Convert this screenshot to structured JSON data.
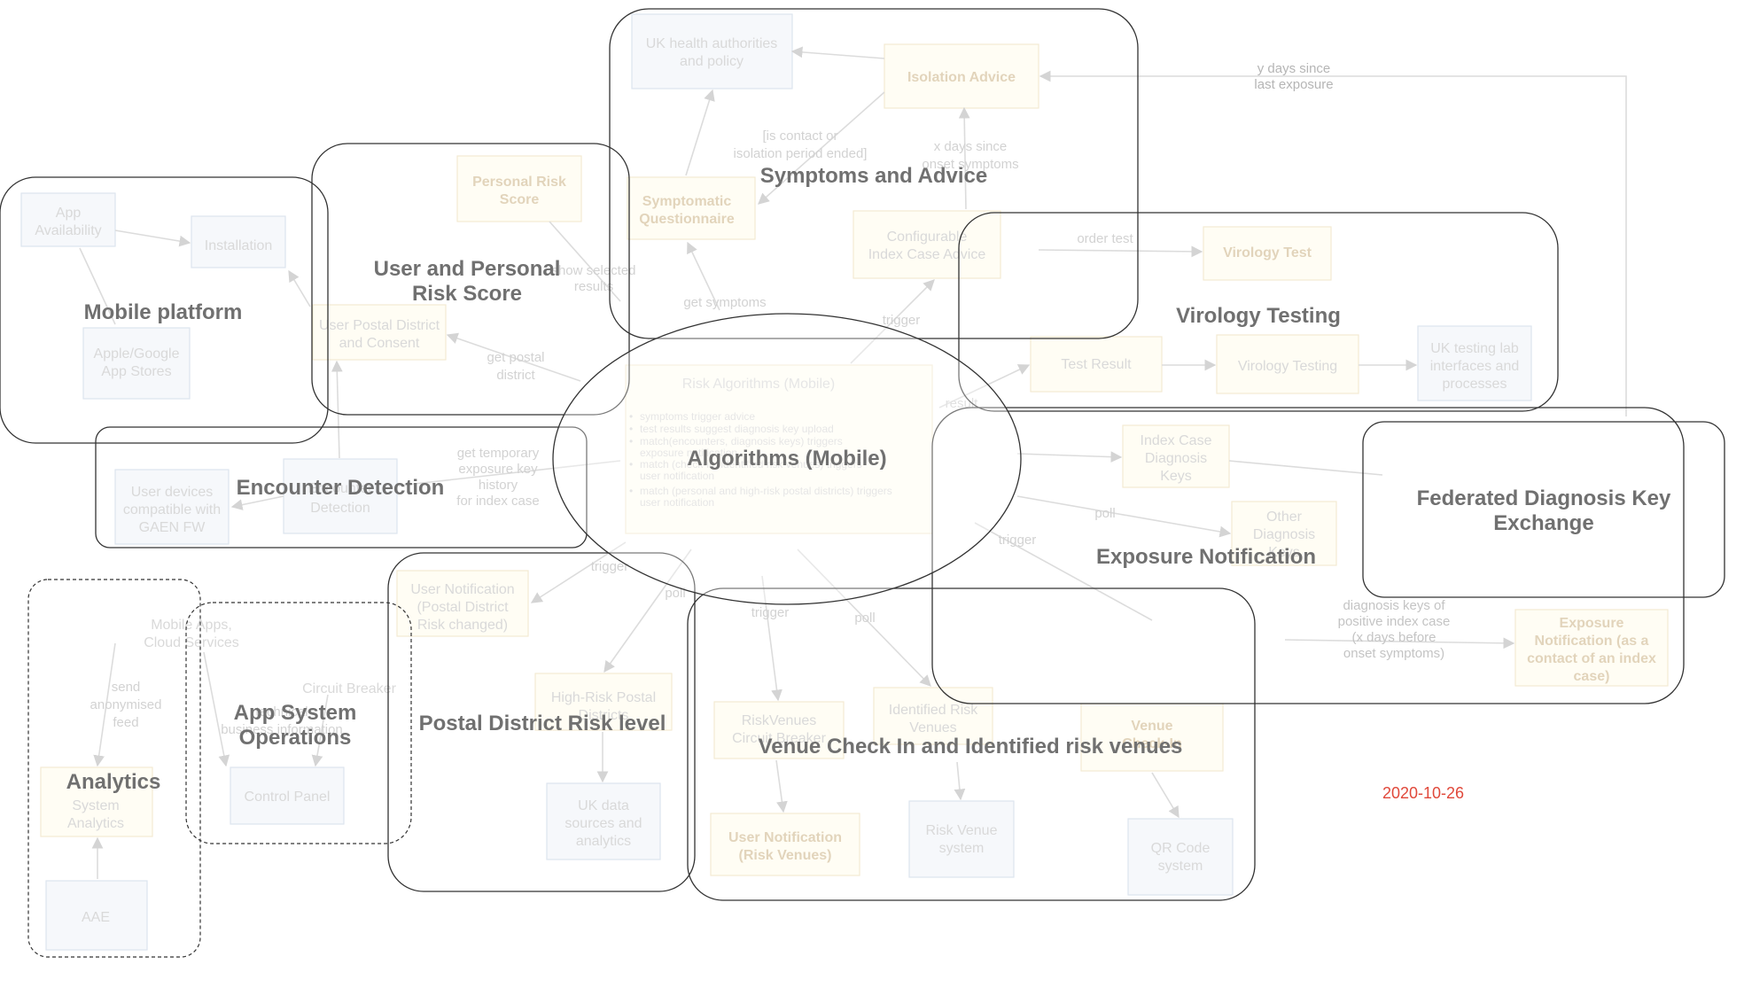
{
  "nodes": {
    "uk_health": "UK health authorities and policy",
    "isolation_advice": "Isolation Advice",
    "symptomatic_questionnaire": "Symptomatic Questionnaire",
    "configurable_index": "Configurable Index Case Advice",
    "personal_risk_score": "Personal Risk Score",
    "user_postal_district": "User Postal District and Consent",
    "app_availability": "App Availability",
    "installation": "Installation",
    "app_stores": "Apple/Google App Stores",
    "user_devices": "User devices compatible with GAEN FW",
    "encounter_detection_node": "Encounter Detection",
    "risk_algorithms": "Risk Algorithms (Mobile)",
    "risk_bullets": [
      "symptoms trigger advice",
      "test results suggest diagnosis key upload",
      "match(encounters, diagnosis keys) triggers exposure notification",
      "match (check-in, identified risk venues) triggers user notification",
      "match (personal and high-risk postal districts) triggers user notification"
    ],
    "virology_test": "Virology Test",
    "test_result": "Test Result",
    "virology_testing_node": "Virology Testing",
    "uk_testing_lab": "UK testing lab interfaces and processes",
    "index_case_keys": "Index Case Diagnosis Keys",
    "other_diagnosis_keys": "Other Diagnosis Keys",
    "exposure_notification_node": "Exposure Notification (as a contact of an index case)",
    "mobile_apps_cloud": "Mobile Apps, Cloud Services",
    "system_analytics": "System Analytics",
    "aae": "AAE",
    "circuit_breaker": "Circuit Breaker",
    "control_panel": "Control Panel",
    "user_notification_postal": "User Notification (Postal District Risk changed)",
    "high_risk_postal": "High-Risk Postal Districts",
    "uk_data_sources": "UK data sources and analytics",
    "riskvenues_cb": "RiskVenues Circuit Breaker",
    "identified_risk_venues": "Identified Risk Venues",
    "venue_checkin": "Venue Check-In",
    "user_notification_venues": "User Notification (Risk Venues)",
    "risk_venue_system": "Risk Venue system",
    "qr_code_system": "QR Code system"
  },
  "edge_labels": {
    "y_days": "y days since last exposure",
    "is_contact": "[is contact or isolation period ended]",
    "x_days": "x days since onset symptoms",
    "get_symptoms": "get symptoms",
    "trigger": "trigger",
    "get_postal_district": "get postal district",
    "get_temporary_keys": "get temporary exposure key history for index case",
    "show_selected_results": "show selected results",
    "order_test": "order test",
    "result": "result",
    "poll": "poll",
    "diagnosis_keys_positive": "diagnosis keys of positive index case (x days before onset symptoms)",
    "send_anonymised_feed": "send anonymised feed",
    "technical_business_information": "technical business information"
  },
  "groups": {
    "symptoms_advice": "Symptoms and Advice",
    "user_personal_risk": "User and Personal Risk Score",
    "mobile_platform": "Mobile platform",
    "encounter_detection": "Encounter Detection",
    "algorithms": "Algorithms (Mobile)",
    "virology_testing": "Virology Testing",
    "exposure_notification": "Exposure Notification",
    "federated_keys": "Federated Diagnosis Key Exchange",
    "analytics": "Analytics",
    "app_system_ops": "App System Operations",
    "postal_district_risk": "Postal District Risk level",
    "venue_checkin": "Venue Check In and Identified risk venues"
  },
  "date": "2020-10-26",
  "colors": {
    "group_border": "#333333",
    "group_title": "#707070",
    "faint_node_text": "#d9d9d9",
    "date": "#e0483a"
  }
}
